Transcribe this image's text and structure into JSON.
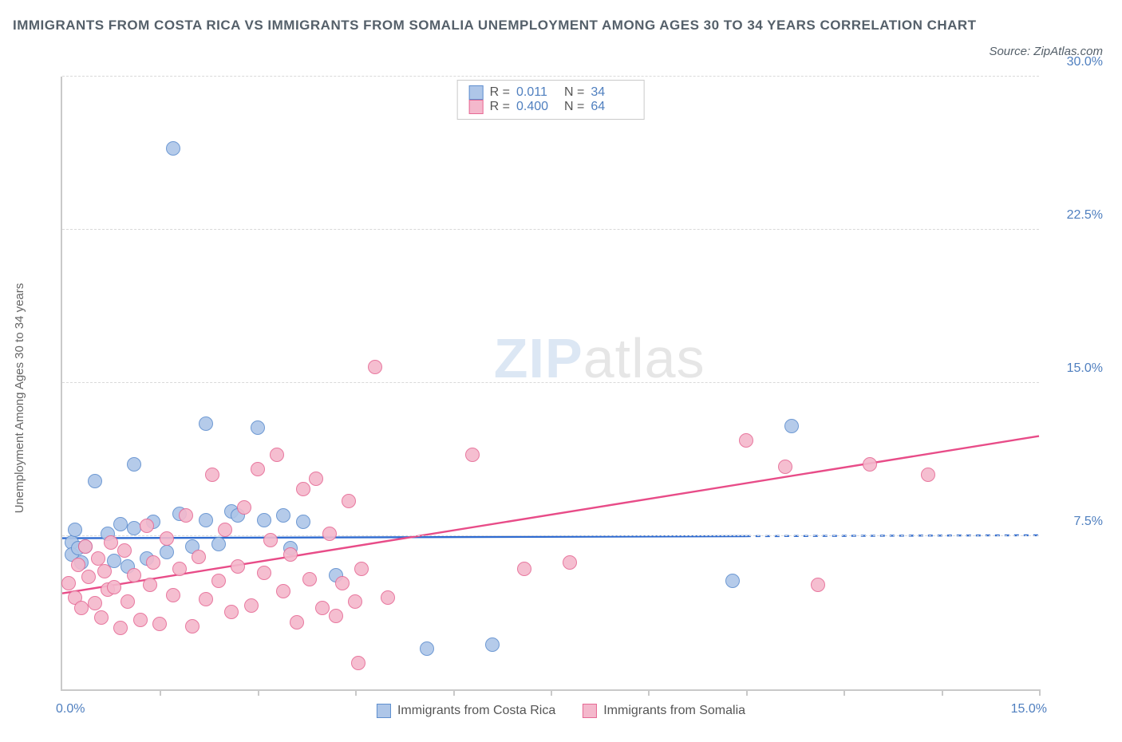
{
  "title": "IMMIGRANTS FROM COSTA RICA VS IMMIGRANTS FROM SOMALIA UNEMPLOYMENT AMONG AGES 30 TO 34 YEARS CORRELATION CHART",
  "title_fontsize": 17,
  "title_color": "#55606a",
  "source_label": "Source: ZipAtlas.com",
  "source_fontsize": 15,
  "y_axis_label": "Unemployment Among Ages 30 to 34 years",
  "watermark": {
    "part1": "ZIP",
    "part2": "atlas"
  },
  "chart": {
    "type": "scatter",
    "background_color": "#ffffff",
    "axis_color": "#c9c9c9",
    "grid_color": "#d9d9d9",
    "tick_label_color": "#4f7fbf",
    "xlim": [
      0,
      15
    ],
    "ylim": [
      0,
      30
    ],
    "x_ticks": [
      1.5,
      3.0,
      4.5,
      6.0,
      7.5,
      9.0,
      10.5,
      12.0,
      13.5,
      15.0
    ],
    "x_origin_label": "0.0%",
    "x_max_label": "15.0%",
    "y_ticks": [
      {
        "value": 7.5,
        "label": "7.5%"
      },
      {
        "value": 15.0,
        "label": "15.0%"
      },
      {
        "value": 22.5,
        "label": "22.5%"
      },
      {
        "value": 30.0,
        "label": "30.0%"
      }
    ],
    "point_radius": 9,
    "point_border_width": 1.2,
    "point_fill_opacity": 0.35,
    "trend_line_width": 2.4,
    "series": [
      {
        "key": "costa_rica",
        "label": "Immigrants from Costa Rica",
        "color_border": "#5f8fcf",
        "color_fill": "#aec6e8",
        "trend_color": "#2f6bd0",
        "R": "0.011",
        "N": "34",
        "trend": {
          "x1": 0.0,
          "y1": 7.4,
          "x2": 10.5,
          "y2": 7.5,
          "extend_to_xmax": true
        },
        "points": [
          {
            "x": 0.15,
            "y": 7.2
          },
          {
            "x": 0.15,
            "y": 6.6
          },
          {
            "x": 0.2,
            "y": 7.8
          },
          {
            "x": 0.25,
            "y": 6.9
          },
          {
            "x": 0.3,
            "y": 6.2
          },
          {
            "x": 0.35,
            "y": 7.0
          },
          {
            "x": 0.5,
            "y": 10.2
          },
          {
            "x": 0.7,
            "y": 7.6
          },
          {
            "x": 0.8,
            "y": 6.3
          },
          {
            "x": 0.9,
            "y": 8.1
          },
          {
            "x": 1.0,
            "y": 6.0
          },
          {
            "x": 1.1,
            "y": 7.9
          },
          {
            "x": 1.1,
            "y": 11.0
          },
          {
            "x": 1.3,
            "y": 6.4
          },
          {
            "x": 1.4,
            "y": 8.2
          },
          {
            "x": 1.6,
            "y": 6.7
          },
          {
            "x": 1.7,
            "y": 26.5
          },
          {
            "x": 1.8,
            "y": 8.6
          },
          {
            "x": 2.0,
            "y": 7.0
          },
          {
            "x": 2.2,
            "y": 13.0
          },
          {
            "x": 2.2,
            "y": 8.3
          },
          {
            "x": 2.4,
            "y": 7.1
          },
          {
            "x": 2.6,
            "y": 8.7
          },
          {
            "x": 2.7,
            "y": 8.5
          },
          {
            "x": 3.0,
            "y": 12.8
          },
          {
            "x": 3.1,
            "y": 8.3
          },
          {
            "x": 3.4,
            "y": 8.5
          },
          {
            "x": 3.5,
            "y": 6.9
          },
          {
            "x": 3.7,
            "y": 8.2
          },
          {
            "x": 4.2,
            "y": 5.6
          },
          {
            "x": 5.6,
            "y": 2.0
          },
          {
            "x": 6.6,
            "y": 2.2
          },
          {
            "x": 10.3,
            "y": 5.3
          },
          {
            "x": 11.2,
            "y": 12.9
          }
        ]
      },
      {
        "key": "somalia",
        "label": "Immigrants from Somalia",
        "color_border": "#e66a95",
        "color_fill": "#f4b8cc",
        "trend_color": "#e84c88",
        "R": "0.400",
        "N": "64",
        "trend": {
          "x1": 0.0,
          "y1": 4.7,
          "x2": 15.0,
          "y2": 12.4,
          "extend_to_xmax": false
        },
        "points": [
          {
            "x": 0.1,
            "y": 5.2
          },
          {
            "x": 0.2,
            "y": 4.5
          },
          {
            "x": 0.25,
            "y": 6.1
          },
          {
            "x": 0.3,
            "y": 4.0
          },
          {
            "x": 0.35,
            "y": 7.0
          },
          {
            "x": 0.4,
            "y": 5.5
          },
          {
            "x": 0.5,
            "y": 4.2
          },
          {
            "x": 0.55,
            "y": 6.4
          },
          {
            "x": 0.6,
            "y": 3.5
          },
          {
            "x": 0.65,
            "y": 5.8
          },
          {
            "x": 0.7,
            "y": 4.9
          },
          {
            "x": 0.75,
            "y": 7.2
          },
          {
            "x": 0.8,
            "y": 5.0
          },
          {
            "x": 0.9,
            "y": 3.0
          },
          {
            "x": 0.95,
            "y": 6.8
          },
          {
            "x": 1.0,
            "y": 4.3
          },
          {
            "x": 1.1,
            "y": 5.6
          },
          {
            "x": 1.2,
            "y": 3.4
          },
          {
            "x": 1.3,
            "y": 8.0
          },
          {
            "x": 1.35,
            "y": 5.1
          },
          {
            "x": 1.4,
            "y": 6.2
          },
          {
            "x": 1.5,
            "y": 3.2
          },
          {
            "x": 1.6,
            "y": 7.4
          },
          {
            "x": 1.7,
            "y": 4.6
          },
          {
            "x": 1.8,
            "y": 5.9
          },
          {
            "x": 1.9,
            "y": 8.5
          },
          {
            "x": 2.0,
            "y": 3.1
          },
          {
            "x": 2.1,
            "y": 6.5
          },
          {
            "x": 2.2,
            "y": 4.4
          },
          {
            "x": 2.3,
            "y": 10.5
          },
          {
            "x": 2.4,
            "y": 5.3
          },
          {
            "x": 2.5,
            "y": 7.8
          },
          {
            "x": 2.6,
            "y": 3.8
          },
          {
            "x": 2.7,
            "y": 6.0
          },
          {
            "x": 2.8,
            "y": 8.9
          },
          {
            "x": 2.9,
            "y": 4.1
          },
          {
            "x": 3.0,
            "y": 10.8
          },
          {
            "x": 3.1,
            "y": 5.7
          },
          {
            "x": 3.2,
            "y": 7.3
          },
          {
            "x": 3.3,
            "y": 11.5
          },
          {
            "x": 3.4,
            "y": 4.8
          },
          {
            "x": 3.5,
            "y": 6.6
          },
          {
            "x": 3.6,
            "y": 3.3
          },
          {
            "x": 3.7,
            "y": 9.8
          },
          {
            "x": 3.8,
            "y": 5.4
          },
          {
            "x": 3.9,
            "y": 10.3
          },
          {
            "x": 4.0,
            "y": 4.0
          },
          {
            "x": 4.1,
            "y": 7.6
          },
          {
            "x": 4.2,
            "y": 3.6
          },
          {
            "x": 4.3,
            "y": 5.2
          },
          {
            "x": 4.4,
            "y": 9.2
          },
          {
            "x": 4.5,
            "y": 4.3
          },
          {
            "x": 4.55,
            "y": 1.3
          },
          {
            "x": 4.6,
            "y": 5.9
          },
          {
            "x": 4.8,
            "y": 15.8
          },
          {
            "x": 5.0,
            "y": 4.5
          },
          {
            "x": 6.3,
            "y": 11.5
          },
          {
            "x": 7.1,
            "y": 5.9
          },
          {
            "x": 7.8,
            "y": 6.2
          },
          {
            "x": 10.5,
            "y": 12.2
          },
          {
            "x": 11.1,
            "y": 10.9
          },
          {
            "x": 11.6,
            "y": 5.1
          },
          {
            "x": 12.4,
            "y": 11.0
          },
          {
            "x": 13.3,
            "y": 10.5
          }
        ]
      }
    ],
    "legend_top": {
      "r_label": "R =",
      "n_label": "N ="
    }
  }
}
